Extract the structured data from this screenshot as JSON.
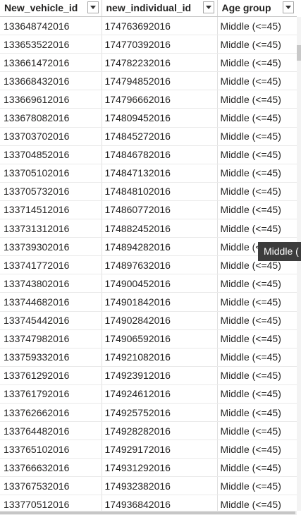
{
  "table": {
    "columns": [
      {
        "label": "New_vehicle_id"
      },
      {
        "label": "new_individual_id"
      },
      {
        "label": "Age group"
      }
    ],
    "rows": [
      [
        "133648742016",
        "174763692016",
        "Middle (<=45)"
      ],
      [
        "133653522016",
        "174770392016",
        "Middle (<=45)"
      ],
      [
        "133661472016",
        "174782232016",
        "Middle (<=45)"
      ],
      [
        "133668432016",
        "174794852016",
        "Middle (<=45)"
      ],
      [
        "133669612016",
        "174796662016",
        "Middle (<=45)"
      ],
      [
        "133678082016",
        "174809452016",
        "Middle (<=45)"
      ],
      [
        "133703702016",
        "174845272016",
        "Middle (<=45)"
      ],
      [
        "133704852016",
        "174846782016",
        "Middle (<=45)"
      ],
      [
        "133705102016",
        "174847132016",
        "Middle (<=45)"
      ],
      [
        "133705732016",
        "174848102016",
        "Middle (<=45)"
      ],
      [
        "133714512016",
        "174860772016",
        "Middle (<=45)"
      ],
      [
        "133731312016",
        "174882452016",
        "Middle (<=45)"
      ],
      [
        "133739302016",
        "174894282016",
        "Middle (<=45)"
      ],
      [
        "133741772016",
        "174897632016",
        "Middle (<=45)"
      ],
      [
        "133743802016",
        "174900452016",
        "Middle (<=45)"
      ],
      [
        "133744682016",
        "174901842016",
        "Middle (<=45)"
      ],
      [
        "133745442016",
        "174902842016",
        "Middle (<=45)"
      ],
      [
        "133747982016",
        "174906592016",
        "Middle (<=45)"
      ],
      [
        "133759332016",
        "174921082016",
        "Middle (<=45)"
      ],
      [
        "133761292016",
        "174923912016",
        "Middle (<=45)"
      ],
      [
        "133761792016",
        "174924612016",
        "Middle (<=45)"
      ],
      [
        "133762662016",
        "174925752016",
        "Middle (<=45)"
      ],
      [
        "133764482016",
        "174928282016",
        "Middle (<=45)"
      ],
      [
        "133765102016",
        "174929172016",
        "Middle (<=45)"
      ],
      [
        "133766632016",
        "174931292016",
        "Middle (<=45)"
      ],
      [
        "133767532016",
        "174932382016",
        "Middle (<=45)"
      ],
      [
        "133770512016",
        "174936842016",
        "Middle (<=45)"
      ]
    ]
  },
  "filter_icon": "chevron-down-icon",
  "tooltip": {
    "text": "Middle ("
  }
}
